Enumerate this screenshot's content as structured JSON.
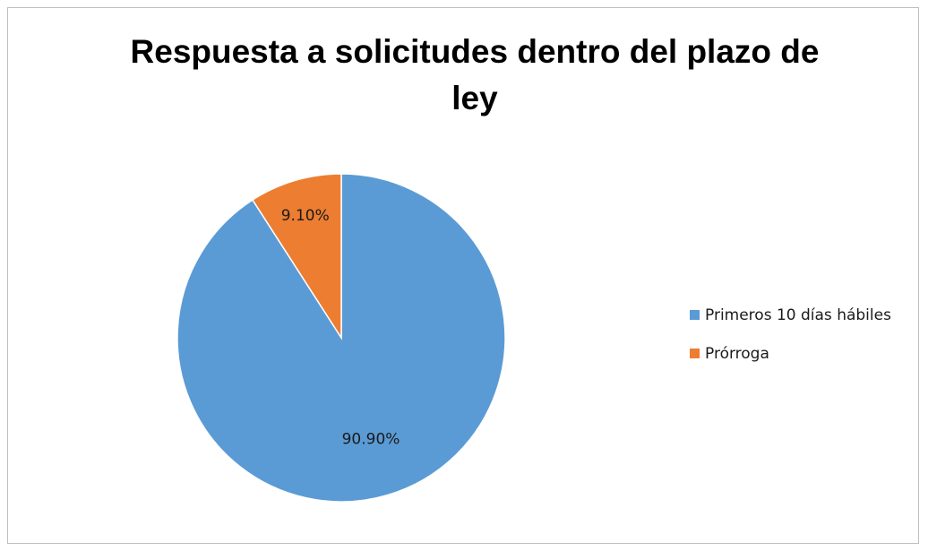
{
  "chart_data": {
    "type": "pie",
    "title": "Respuesta a solicitudes dentro del plazo de ley",
    "categories": [
      "Primeros 10 días hábiles",
      "Prórroga"
    ],
    "values": [
      90.9,
      9.1
    ],
    "value_labels": [
      "90.90%",
      "9.10%"
    ],
    "colors": [
      "#5B9BD5",
      "#ED7D31"
    ],
    "legend_position": "right",
    "start_angle": "12 o'clock",
    "direction": "counter-clockwise for second slice"
  }
}
